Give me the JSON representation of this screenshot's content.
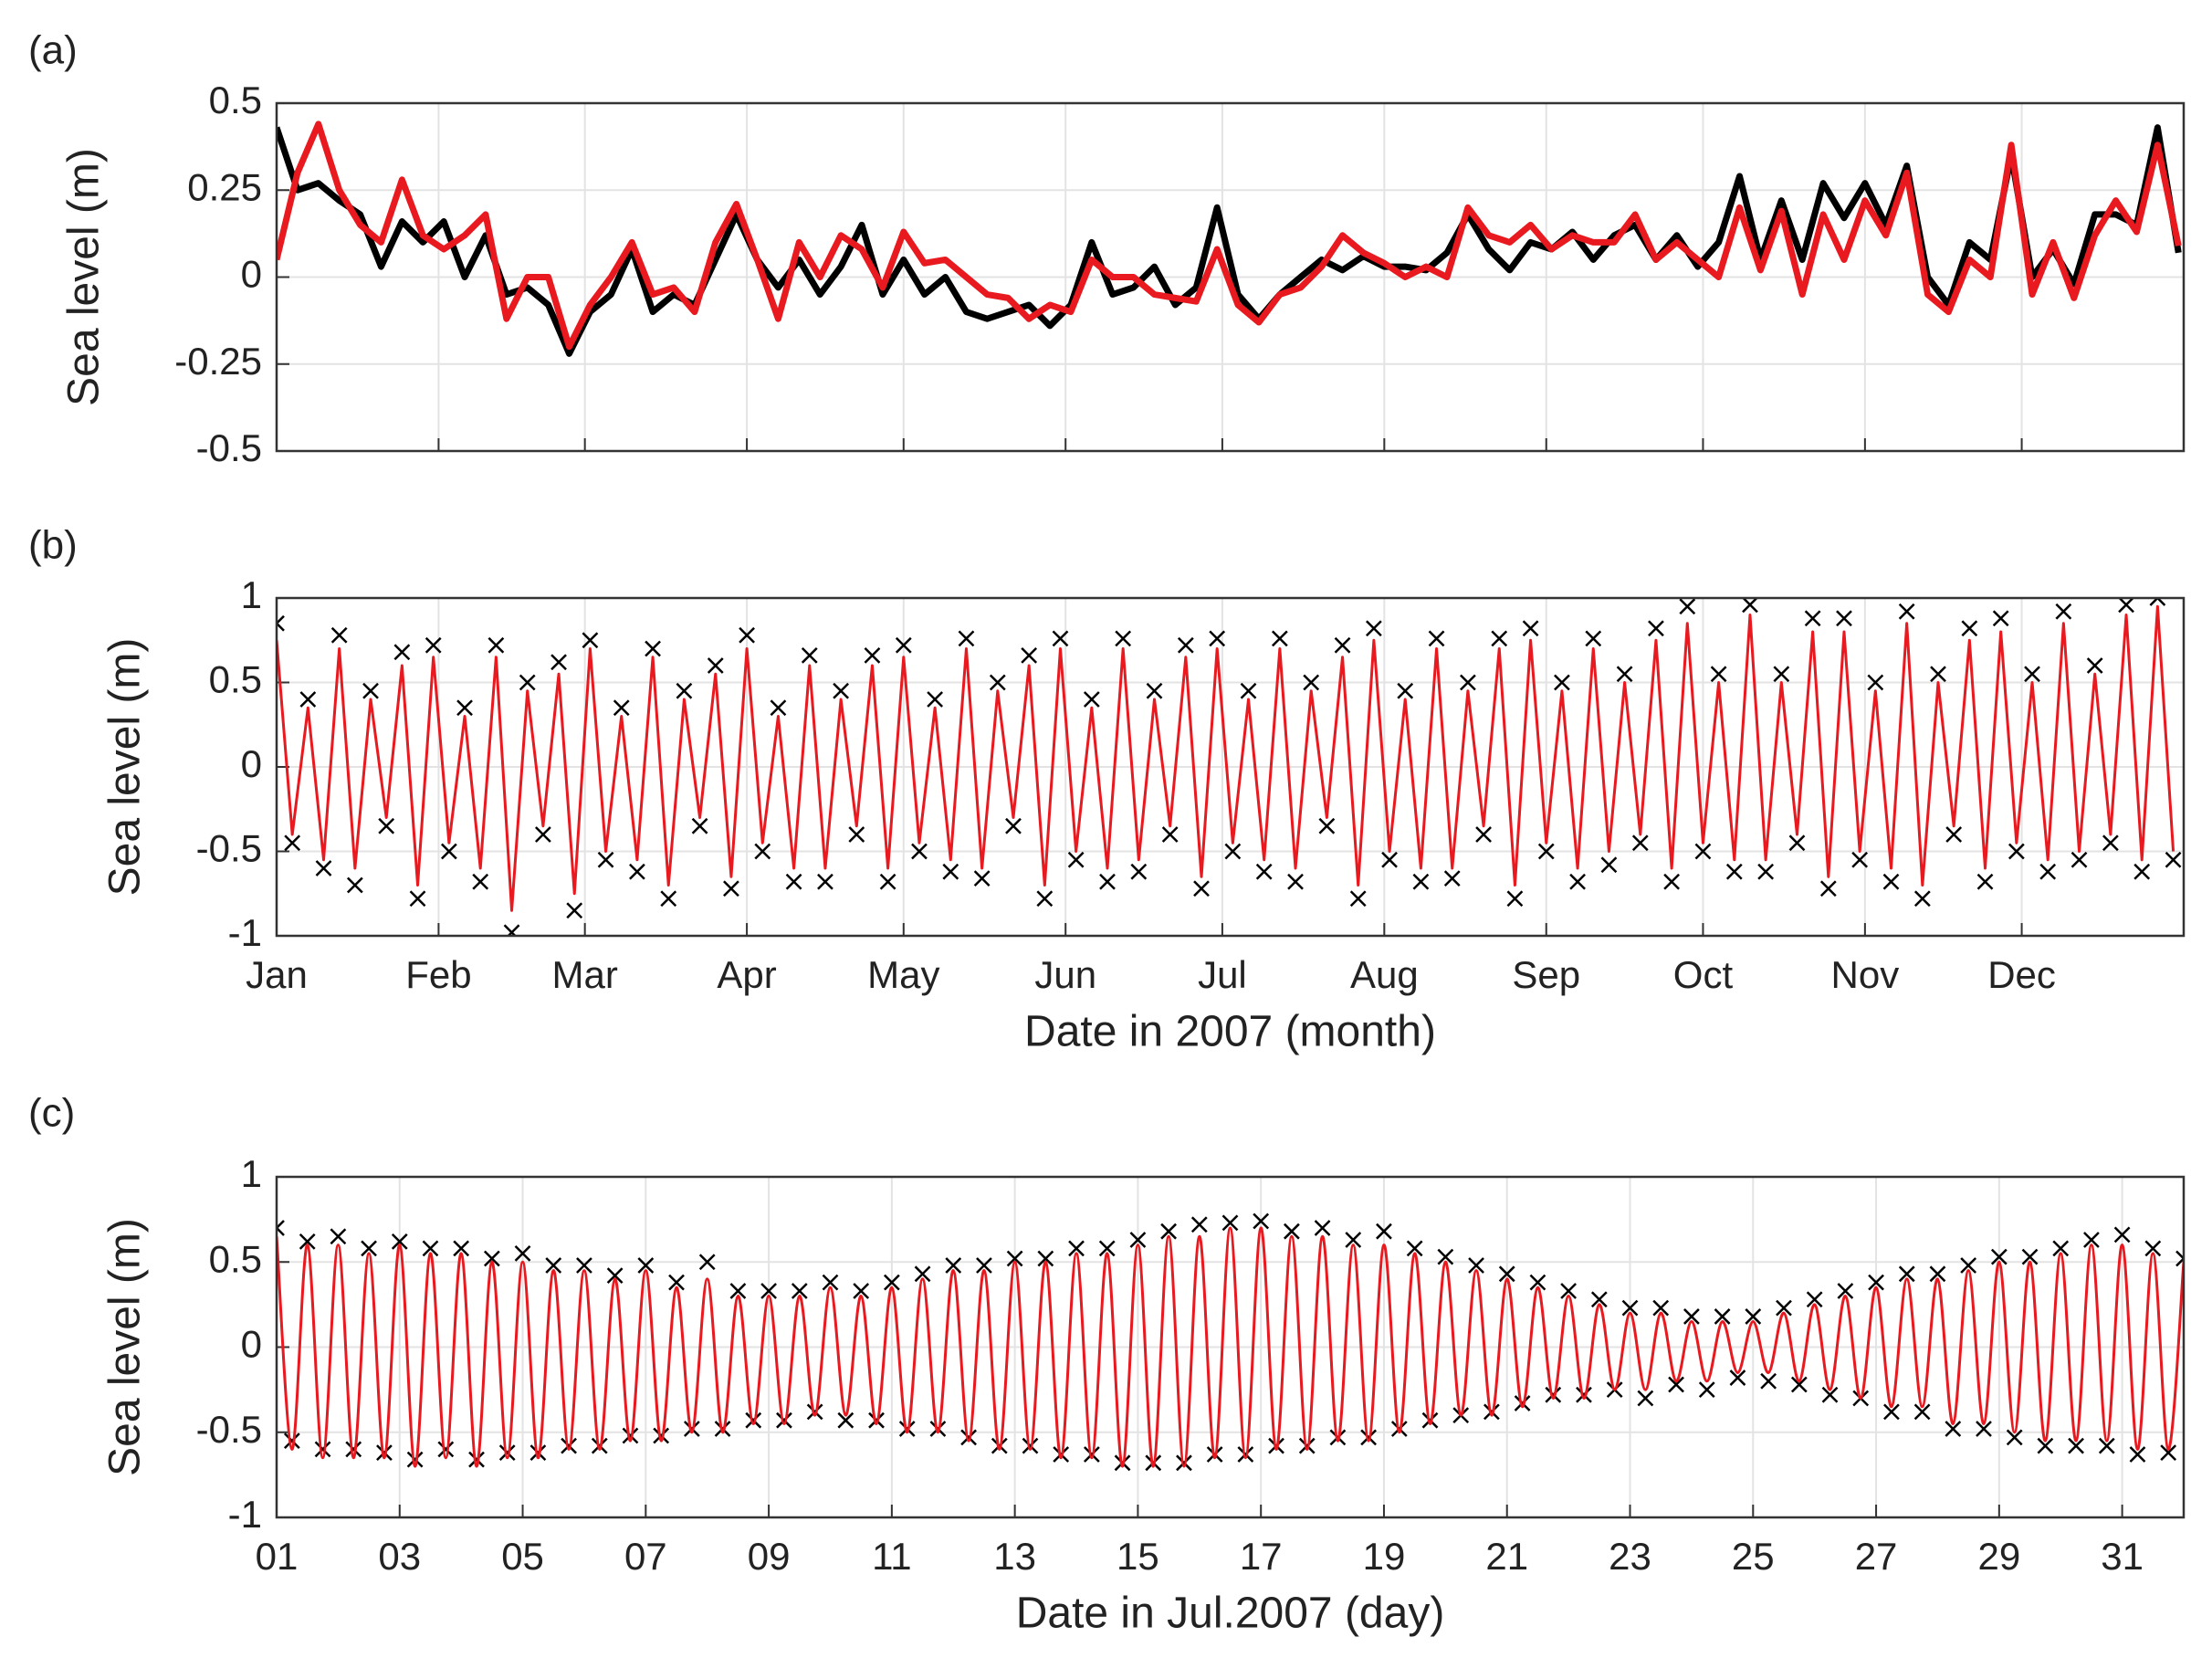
{
  "chart_data": [
    {
      "type": "line",
      "title": "(a)",
      "ylabel": "Sea level (m)",
      "grid": true,
      "xlim": [
        0,
        365
      ],
      "xticks": [
        0,
        31,
        59,
        90,
        120,
        151,
        181,
        212,
        243,
        273,
        304,
        334
      ],
      "ylim": [
        -0.5,
        0.5
      ],
      "yticks": [
        0.5,
        0.25,
        0,
        -0.25,
        -0.5
      ],
      "x": [
        0,
        4,
        8,
        12,
        16,
        20,
        24,
        28,
        32,
        36,
        40,
        44,
        48,
        52,
        56,
        60,
        64,
        68,
        72,
        76,
        80,
        84,
        88,
        92,
        96,
        100,
        104,
        108,
        112,
        116,
        120,
        124,
        128,
        132,
        136,
        140,
        144,
        148,
        152,
        156,
        160,
        164,
        168,
        172,
        176,
        180,
        184,
        188,
        192,
        196,
        200,
        204,
        208,
        212,
        216,
        220,
        224,
        228,
        232,
        236,
        240,
        244,
        248,
        252,
        256,
        260,
        264,
        268,
        272,
        276,
        280,
        284,
        288,
        292,
        296,
        300,
        304,
        308,
        312,
        316,
        320,
        324,
        328,
        332,
        336,
        340,
        344,
        348,
        352,
        356,
        360,
        364
      ],
      "series": [
        {
          "color": "#000000",
          "width": 7,
          "values": [
            0.43,
            0.25,
            0.27,
            0.22,
            0.18,
            0.03,
            0.16,
            0.1,
            0.16,
            0.0,
            0.12,
            -0.05,
            -0.03,
            -0.08,
            -0.22,
            -0.1,
            -0.05,
            0.08,
            -0.1,
            -0.05,
            -0.08,
            0.05,
            0.18,
            0.05,
            -0.03,
            0.05,
            -0.05,
            0.03,
            0.15,
            -0.05,
            0.05,
            -0.05,
            0.0,
            -0.1,
            -0.12,
            -0.1,
            -0.08,
            -0.14,
            -0.08,
            0.1,
            -0.05,
            -0.03,
            0.03,
            -0.08,
            -0.03,
            0.2,
            -0.05,
            -0.12,
            -0.05,
            0.0,
            0.05,
            0.02,
            0.06,
            0.03,
            0.03,
            0.02,
            0.07,
            0.18,
            0.08,
            0.02,
            0.1,
            0.08,
            0.13,
            0.05,
            0.12,
            0.15,
            0.05,
            0.12,
            0.03,
            0.1,
            0.29,
            0.05,
            0.22,
            0.05,
            0.27,
            0.17,
            0.27,
            0.15,
            0.32,
            0.0,
            -0.08,
            0.1,
            0.05,
            0.35,
            0.0,
            0.08,
            -0.02,
            0.18,
            0.18,
            0.15,
            0.43,
            0.07
          ]
        },
        {
          "color": "#e8191f",
          "width": 7,
          "values": [
            0.05,
            0.3,
            0.44,
            0.25,
            0.15,
            0.1,
            0.28,
            0.12,
            0.08,
            0.12,
            0.18,
            -0.12,
            0.0,
            0.0,
            -0.2,
            -0.08,
            0.0,
            0.1,
            -0.05,
            -0.03,
            -0.1,
            0.1,
            0.21,
            0.05,
            -0.12,
            0.1,
            0.0,
            0.12,
            0.08,
            -0.03,
            0.13,
            0.04,
            0.05,
            0.0,
            -0.05,
            -0.06,
            -0.12,
            -0.08,
            -0.1,
            0.05,
            0.0,
            0.0,
            -0.05,
            -0.06,
            -0.07,
            0.08,
            -0.08,
            -0.13,
            -0.05,
            -0.03,
            0.03,
            0.12,
            0.07,
            0.04,
            0.0,
            0.03,
            0.0,
            0.2,
            0.12,
            0.1,
            0.15,
            0.08,
            0.12,
            0.1,
            0.1,
            0.18,
            0.05,
            0.1,
            0.05,
            0.0,
            0.2,
            0.02,
            0.19,
            -0.05,
            0.18,
            0.05,
            0.22,
            0.12,
            0.3,
            -0.05,
            -0.1,
            0.05,
            0.0,
            0.38,
            -0.05,
            0.1,
            -0.06,
            0.12,
            0.22,
            0.13,
            0.38,
            0.09
          ]
        }
      ]
    },
    {
      "type": "line",
      "title": "(b)",
      "ylabel": "Sea level (m)",
      "xlabel": "Date in 2007 (month)",
      "grid": true,
      "xlim": [
        0,
        365
      ],
      "xticks": [
        {
          "value": 0,
          "label": "Jan"
        },
        {
          "value": 31,
          "label": "Feb"
        },
        {
          "value": 59,
          "label": "Mar"
        },
        {
          "value": 90,
          "label": "Apr"
        },
        {
          "value": 120,
          "label": "May"
        },
        {
          "value": 151,
          "label": "Jun"
        },
        {
          "value": 181,
          "label": "Jul"
        },
        {
          "value": 212,
          "label": "Aug"
        },
        {
          "value": 243,
          "label": "Sep"
        },
        {
          "value": 273,
          "label": "Oct"
        },
        {
          "value": 304,
          "label": "Nov"
        },
        {
          "value": 334,
          "label": "Dec"
        }
      ],
      "ylim": [
        -1,
        1
      ],
      "yticks": [
        1,
        0.5,
        0,
        -0.5,
        -1
      ],
      "x": [
        0,
        3,
        6,
        9,
        12,
        15,
        18,
        21,
        24,
        27,
        30,
        33,
        36,
        39,
        42,
        45,
        48,
        51,
        54,
        57,
        60,
        63,
        66,
        69,
        72,
        75,
        78,
        81,
        84,
        87,
        90,
        93,
        96,
        99,
        102,
        105,
        108,
        111,
        114,
        117,
        120,
        123,
        126,
        129,
        132,
        135,
        138,
        141,
        144,
        147,
        150,
        153,
        156,
        159,
        162,
        165,
        168,
        171,
        174,
        177,
        180,
        183,
        186,
        189,
        192,
        195,
        198,
        201,
        204,
        207,
        210,
        213,
        216,
        219,
        222,
        225,
        228,
        231,
        234,
        237,
        240,
        243,
        246,
        249,
        252,
        255,
        258,
        261,
        264,
        267,
        270,
        273,
        276,
        279,
        282,
        285,
        288,
        291,
        294,
        297,
        300,
        303,
        306,
        309,
        312,
        315,
        318,
        321,
        324,
        327,
        330,
        333,
        336,
        339,
        342,
        345,
        348,
        351,
        354,
        357,
        360,
        363
      ],
      "series": [
        {
          "color": "#000000",
          "marker": "x",
          "values": [
            0.85,
            -0.45,
            0.4,
            -0.6,
            0.78,
            -0.7,
            0.45,
            -0.35,
            0.68,
            -0.78,
            0.72,
            -0.5,
            0.35,
            -0.68,
            0.72,
            -0.98,
            0.5,
            -0.4,
            0.62,
            -0.85,
            0.75,
            -0.55,
            0.35,
            -0.62,
            0.7,
            -0.78,
            0.45,
            -0.35,
            0.6,
            -0.72,
            0.78,
            -0.5,
            0.35,
            -0.68,
            0.66,
            -0.68,
            0.45,
            -0.4,
            0.66,
            -0.68,
            0.72,
            -0.5,
            0.4,
            -0.62,
            0.76,
            -0.66,
            0.5,
            -0.35,
            0.66,
            -0.78,
            0.76,
            -0.55,
            0.4,
            -0.68,
            0.76,
            -0.62,
            0.45,
            -0.4,
            0.72,
            -0.72,
            0.76,
            -0.5,
            0.45,
            -0.62,
            0.76,
            -0.68,
            0.5,
            -0.35,
            0.72,
            -0.78,
            0.82,
            -0.55,
            0.45,
            -0.68,
            0.76,
            -0.66,
            0.5,
            -0.4,
            0.76,
            -0.78,
            0.82,
            -0.5,
            0.5,
            -0.68,
            0.76,
            -0.58,
            0.55,
            -0.45,
            0.82,
            -0.68,
            0.95,
            -0.5,
            0.55,
            -0.62,
            0.96,
            -0.62,
            0.55,
            -0.45,
            0.88,
            -0.72,
            0.88,
            -0.55,
            0.5,
            -0.68,
            0.92,
            -0.78,
            0.55,
            -0.4,
            0.82,
            -0.68,
            0.88,
            -0.5,
            0.55,
            -0.62,
            0.92,
            -0.55,
            0.6,
            -0.45,
            0.96,
            -0.62,
            1.0,
            -0.55
          ]
        },
        {
          "color": "#e8191f",
          "values": [
            0.75,
            -0.4,
            0.35,
            -0.55,
            0.7,
            -0.6,
            0.4,
            -0.3,
            0.6,
            -0.7,
            0.65,
            -0.45,
            0.3,
            -0.6,
            0.65,
            -0.85,
            0.45,
            -0.35,
            0.55,
            -0.75,
            0.7,
            -0.5,
            0.3,
            -0.55,
            0.65,
            -0.7,
            0.4,
            -0.3,
            0.55,
            -0.65,
            0.7,
            -0.45,
            0.3,
            -0.6,
            0.6,
            -0.6,
            0.4,
            -0.35,
            0.6,
            -0.6,
            0.65,
            -0.45,
            0.35,
            -0.55,
            0.7,
            -0.6,
            0.45,
            -0.3,
            0.6,
            -0.7,
            0.7,
            -0.5,
            0.35,
            -0.6,
            0.7,
            -0.55,
            0.4,
            -0.35,
            0.65,
            -0.65,
            0.7,
            -0.45,
            0.4,
            -0.55,
            0.7,
            -0.6,
            0.45,
            -0.3,
            0.65,
            -0.7,
            0.75,
            -0.5,
            0.4,
            -0.6,
            0.7,
            -0.6,
            0.45,
            -0.35,
            0.7,
            -0.7,
            0.75,
            -0.45,
            0.45,
            -0.6,
            0.7,
            -0.5,
            0.5,
            -0.4,
            0.75,
            -0.6,
            0.85,
            -0.45,
            0.5,
            -0.55,
            0.9,
            -0.55,
            0.5,
            -0.4,
            0.8,
            -0.65,
            0.8,
            -0.5,
            0.45,
            -0.6,
            0.85,
            -0.7,
            0.5,
            -0.35,
            0.75,
            -0.6,
            0.8,
            -0.45,
            0.5,
            -0.55,
            0.85,
            -0.5,
            0.55,
            -0.4,
            0.9,
            -0.55,
            0.95,
            -0.5
          ]
        }
      ]
    },
    {
      "type": "line",
      "title": "(c)",
      "ylabel": "Sea level (m)",
      "xlabel": "Date in Jul.2007 (day)",
      "grid": true,
      "smooth": true,
      "xlim": [
        1,
        32
      ],
      "xticks": [
        {
          "value": 1,
          "label": "01"
        },
        {
          "value": 3,
          "label": "03"
        },
        {
          "value": 5,
          "label": "05"
        },
        {
          "value": 7,
          "label": "07"
        },
        {
          "value": 9,
          "label": "09"
        },
        11,
        13,
        15,
        17,
        19,
        21,
        23,
        25,
        27,
        29,
        31
      ],
      "ylim": [
        -1,
        1
      ],
      "yticks": [
        1,
        0.5,
        0,
        -0.5,
        -1
      ],
      "x": [
        1,
        1.25,
        1.5,
        1.75,
        2,
        2.25,
        2.5,
        2.75,
        3,
        3.25,
        3.5,
        3.75,
        4,
        4.25,
        4.5,
        4.75,
        5,
        5.25,
        5.5,
        5.75,
        6,
        6.25,
        6.5,
        6.75,
        7,
        7.25,
        7.5,
        7.75,
        8,
        8.25,
        8.5,
        8.75,
        9,
        9.25,
        9.5,
        9.75,
        10,
        10.25,
        10.5,
        10.75,
        11,
        11.25,
        11.5,
        11.75,
        12,
        12.25,
        12.5,
        12.75,
        13,
        13.25,
        13.5,
        13.75,
        14,
        14.25,
        14.5,
        14.75,
        15,
        15.25,
        15.5,
        15.75,
        16,
        16.25,
        16.5,
        16.75,
        17,
        17.25,
        17.5,
        17.75,
        18,
        18.25,
        18.5,
        18.75,
        19,
        19.25,
        19.5,
        19.75,
        20,
        20.25,
        20.5,
        20.75,
        21,
        21.25,
        21.5,
        21.75,
        22,
        22.25,
        22.5,
        22.75,
        23,
        23.25,
        23.5,
        23.75,
        24,
        24.25,
        24.5,
        24.75,
        25,
        25.25,
        25.5,
        25.75,
        26,
        26.25,
        26.5,
        26.75,
        27,
        27.25,
        27.5,
        27.75,
        28,
        28.25,
        28.5,
        28.75,
        29,
        29.25,
        29.5,
        29.75,
        30,
        30.25,
        30.5,
        30.75,
        31,
        31.25,
        31.5,
        31.75,
        32
      ],
      "series": [
        {
          "color": "#000000",
          "marker": "x",
          "values": [
            0.7,
            -0.55,
            0.62,
            -0.6,
            0.65,
            -0.6,
            0.58,
            -0.62,
            0.62,
            -0.66,
            0.58,
            -0.6,
            0.58,
            -0.66,
            0.52,
            -0.62,
            0.55,
            -0.62,
            0.48,
            -0.58,
            0.48,
            -0.58,
            0.42,
            -0.52,
            0.48,
            -0.52,
            0.38,
            -0.48,
            0.5,
            -0.48,
            0.33,
            -0.43,
            0.33,
            -0.43,
            0.33,
            -0.38,
            0.38,
            -0.43,
            0.33,
            -0.43,
            0.38,
            -0.48,
            0.43,
            -0.48,
            0.48,
            -0.53,
            0.48,
            -0.58,
            0.52,
            -0.58,
            0.52,
            -0.63,
            0.58,
            -0.63,
            0.58,
            -0.68,
            0.63,
            -0.68,
            0.68,
            -0.68,
            0.72,
            -0.63,
            0.73,
            -0.63,
            0.74,
            -0.58,
            0.68,
            -0.58,
            0.7,
            -0.53,
            0.63,
            -0.53,
            0.68,
            -0.48,
            0.58,
            -0.43,
            0.53,
            -0.4,
            0.48,
            -0.38,
            0.43,
            -0.33,
            0.38,
            -0.28,
            0.33,
            -0.28,
            0.28,
            -0.25,
            0.23,
            -0.3,
            0.23,
            -0.22,
            0.18,
            -0.25,
            0.18,
            -0.18,
            0.18,
            -0.2,
            0.23,
            -0.22,
            0.28,
            -0.28,
            0.33,
            -0.3,
            0.38,
            -0.38,
            0.43,
            -0.38,
            0.43,
            -0.48,
            0.48,
            -0.48,
            0.53,
            -0.53,
            0.53,
            -0.58,
            0.58,
            -0.58,
            0.63,
            -0.58,
            0.66,
            -0.63,
            0.58,
            -0.62,
            0.52
          ]
        },
        {
          "color": "#e8191f",
          "values": [
            0.65,
            -0.6,
            0.6,
            -0.65,
            0.6,
            -0.65,
            0.55,
            -0.65,
            0.6,
            -0.7,
            0.55,
            -0.65,
            0.55,
            -0.7,
            0.5,
            -0.65,
            0.5,
            -0.65,
            0.45,
            -0.6,
            0.45,
            -0.6,
            0.4,
            -0.55,
            0.45,
            -0.55,
            0.35,
            -0.5,
            0.4,
            -0.5,
            0.3,
            -0.45,
            0.3,
            -0.45,
            0.3,
            -0.4,
            0.35,
            -0.4,
            0.3,
            -0.45,
            0.35,
            -0.5,
            0.4,
            -0.5,
            0.45,
            -0.55,
            0.45,
            -0.6,
            0.5,
            -0.6,
            0.5,
            -0.65,
            0.55,
            -0.65,
            0.55,
            -0.7,
            0.6,
            -0.7,
            0.65,
            -0.7,
            0.65,
            -0.65,
            0.7,
            -0.65,
            0.7,
            -0.6,
            0.65,
            -0.6,
            0.65,
            -0.55,
            0.6,
            -0.55,
            0.6,
            -0.5,
            0.55,
            -0.45,
            0.5,
            -0.4,
            0.45,
            -0.4,
            0.4,
            -0.35,
            0.35,
            -0.3,
            0.3,
            -0.3,
            0.25,
            -0.25,
            0.2,
            -0.25,
            0.2,
            -0.2,
            0.15,
            -0.2,
            0.15,
            -0.15,
            0.15,
            -0.15,
            0.2,
            -0.2,
            0.25,
            -0.25,
            0.3,
            -0.3,
            0.35,
            -0.35,
            0.4,
            -0.35,
            0.4,
            -0.45,
            0.45,
            -0.45,
            0.5,
            -0.5,
            0.5,
            -0.55,
            0.55,
            -0.55,
            0.6,
            -0.55,
            0.6,
            -0.6,
            0.55,
            -0.6,
            0.5
          ]
        }
      ]
    }
  ]
}
